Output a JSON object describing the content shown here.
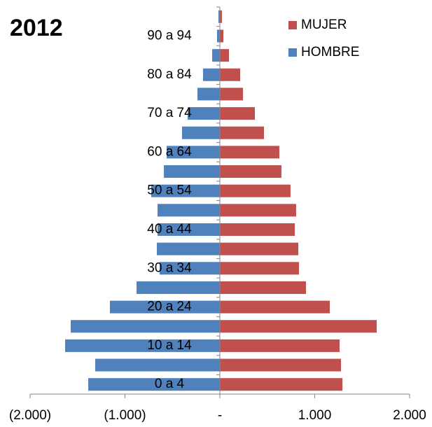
{
  "chart_data": {
    "type": "pyramid",
    "title": "2012",
    "categories": [
      "0 a 4",
      null,
      "10 a 14",
      null,
      "20 a 24",
      null,
      "30 a 34",
      null,
      "40 a 44",
      null,
      "50 a 54",
      null,
      "60 a 64",
      null,
      "70 a 74",
      null,
      "80 a 84",
      null,
      "90 a 94",
      null
    ],
    "series": [
      {
        "name": "MUJER",
        "color": "#c0504d",
        "values": [
          1292,
          1277,
          1262,
          1653,
          1159,
          908,
          834,
          827,
          790,
          804,
          745,
          649,
          627,
          465,
          369,
          244,
          214,
          96,
          37,
          22
        ]
      },
      {
        "name": "HOMBRE",
        "color": "#4f81bd",
        "values": [
          -1387,
          -1314,
          -1631,
          -1572,
          -1159,
          -878,
          -635,
          -664,
          -657,
          -657,
          -723,
          -590,
          -561,
          -399,
          -339,
          -236,
          -177,
          -81,
          -30,
          -15
        ]
      }
    ],
    "xlim": [
      -2000,
      2000
    ],
    "xticks": [
      {
        "value": -2000,
        "label": "(2.000)"
      },
      {
        "value": -1000,
        "label": "(1.000)"
      },
      {
        "value": 0,
        "label": "-"
      },
      {
        "value": 1000,
        "label": "1.000"
      },
      {
        "value": 2000,
        "label": "2.000"
      }
    ],
    "legend": "upper right"
  }
}
